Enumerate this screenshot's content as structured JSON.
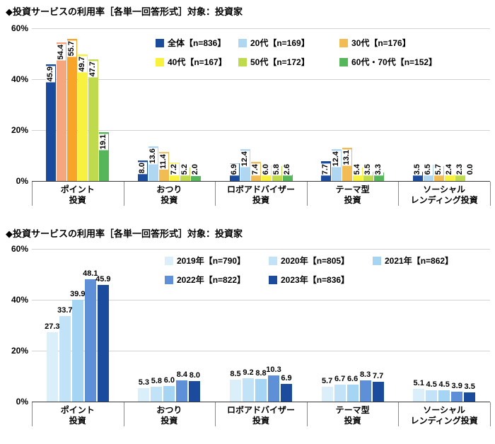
{
  "charts": [
    {
      "title": "◆投資サービスの利用率［各単一回答形式］対象：投資家",
      "chart_data": {
        "type": "bar",
        "ylim": [
          0,
          60
        ],
        "yticks": [
          0,
          20,
          40,
          60
        ],
        "ytick_labels": [
          "0%",
          "20%",
          "40%",
          "60%"
        ],
        "grid": true,
        "legend_position": "top-center-inside",
        "value_label_style": "vertical",
        "categories": [
          [
            "ポイント",
            "投資"
          ],
          [
            "おつり",
            "投資"
          ],
          [
            "ロボアドバイザー",
            "投資"
          ],
          [
            "テーマ型",
            "投資"
          ],
          [
            "ソーシャル",
            "レンディング投資"
          ]
        ],
        "series": [
          {
            "name": "全体【n=836】",
            "color": "#1A4B9C",
            "values": [
              45.9,
              8.0,
              6.9,
              7.7,
              3.5
            ]
          },
          {
            "name": "20代【n=169】",
            "color": "#AFD7F2",
            "values": [
              54.4,
              13.6,
              12.4,
              12.4,
              6.5
            ]
          },
          {
            "name": "30代【n=176】",
            "color": "#F2BC55",
            "values": [
              55.7,
              11.4,
              7.4,
              13.1,
              5.7
            ]
          },
          {
            "name": "40代【n=167】",
            "color": "#F8F23E",
            "values": [
              49.7,
              7.2,
              6.0,
              5.4,
              2.4
            ]
          },
          {
            "name": "50代【n=172】",
            "color": "#BFDB4D",
            "values": [
              47.7,
              5.2,
              5.8,
              3.5,
              2.3
            ]
          },
          {
            "name": "60代・70代【n=152】",
            "color": "#56B75A",
            "values": [
              19.1,
              2.0,
              2.6,
              3.3,
              0.0
            ]
          }
        ],
        "color_overrides": [
          {
            "category": 0,
            "series": 1,
            "color": "#F5A67F"
          },
          {
            "category": 0,
            "series": 2,
            "color": "#F7A428"
          }
        ],
        "legend_rows": [
          [
            0,
            1,
            2
          ],
          [
            3,
            4,
            5
          ]
        ]
      }
    },
    {
      "title": "◆投資サービスの利用率［各単一回答形式］対象：投資家",
      "chart_data": {
        "type": "bar",
        "ylim": [
          0,
          60
        ],
        "yticks": [
          0,
          20,
          40,
          60
        ],
        "ytick_labels": [
          "0%",
          "20%",
          "40%",
          "60%"
        ],
        "grid": true,
        "legend_position": "top-center-inside",
        "value_label_style": "horizontal",
        "categories": [
          [
            "ポイント",
            "投資"
          ],
          [
            "おつり",
            "投資"
          ],
          [
            "ロボアドバイザー",
            "投資"
          ],
          [
            "テーマ型",
            "投資"
          ],
          [
            "ソーシャル",
            "レンディング投資"
          ]
        ],
        "series": [
          {
            "name": "2019年【n=790】",
            "color": "#DAEFF9",
            "values": [
              27.3,
              5.3,
              8.5,
              5.7,
              5.1
            ]
          },
          {
            "name": "2020年【n=805】",
            "color": "#C2E3F7",
            "values": [
              33.7,
              5.8,
              9.2,
              6.7,
              4.5
            ]
          },
          {
            "name": "2021年【n=862】",
            "color": "#A5D5F3",
            "values": [
              39.9,
              6.0,
              8.8,
              6.6,
              4.5
            ]
          },
          {
            "name": "2022年【n=822】",
            "color": "#5E90D8",
            "values": [
              48.1,
              8.4,
              10.3,
              8.3,
              3.9
            ]
          },
          {
            "name": "2023年【n=836】",
            "color": "#1A4B9C",
            "values": [
              45.9,
              8.0,
              6.9,
              7.7,
              3.5
            ]
          }
        ],
        "color_overrides": [],
        "legend_rows": [
          [
            0,
            1,
            2
          ],
          [
            3,
            4
          ]
        ]
      }
    }
  ]
}
